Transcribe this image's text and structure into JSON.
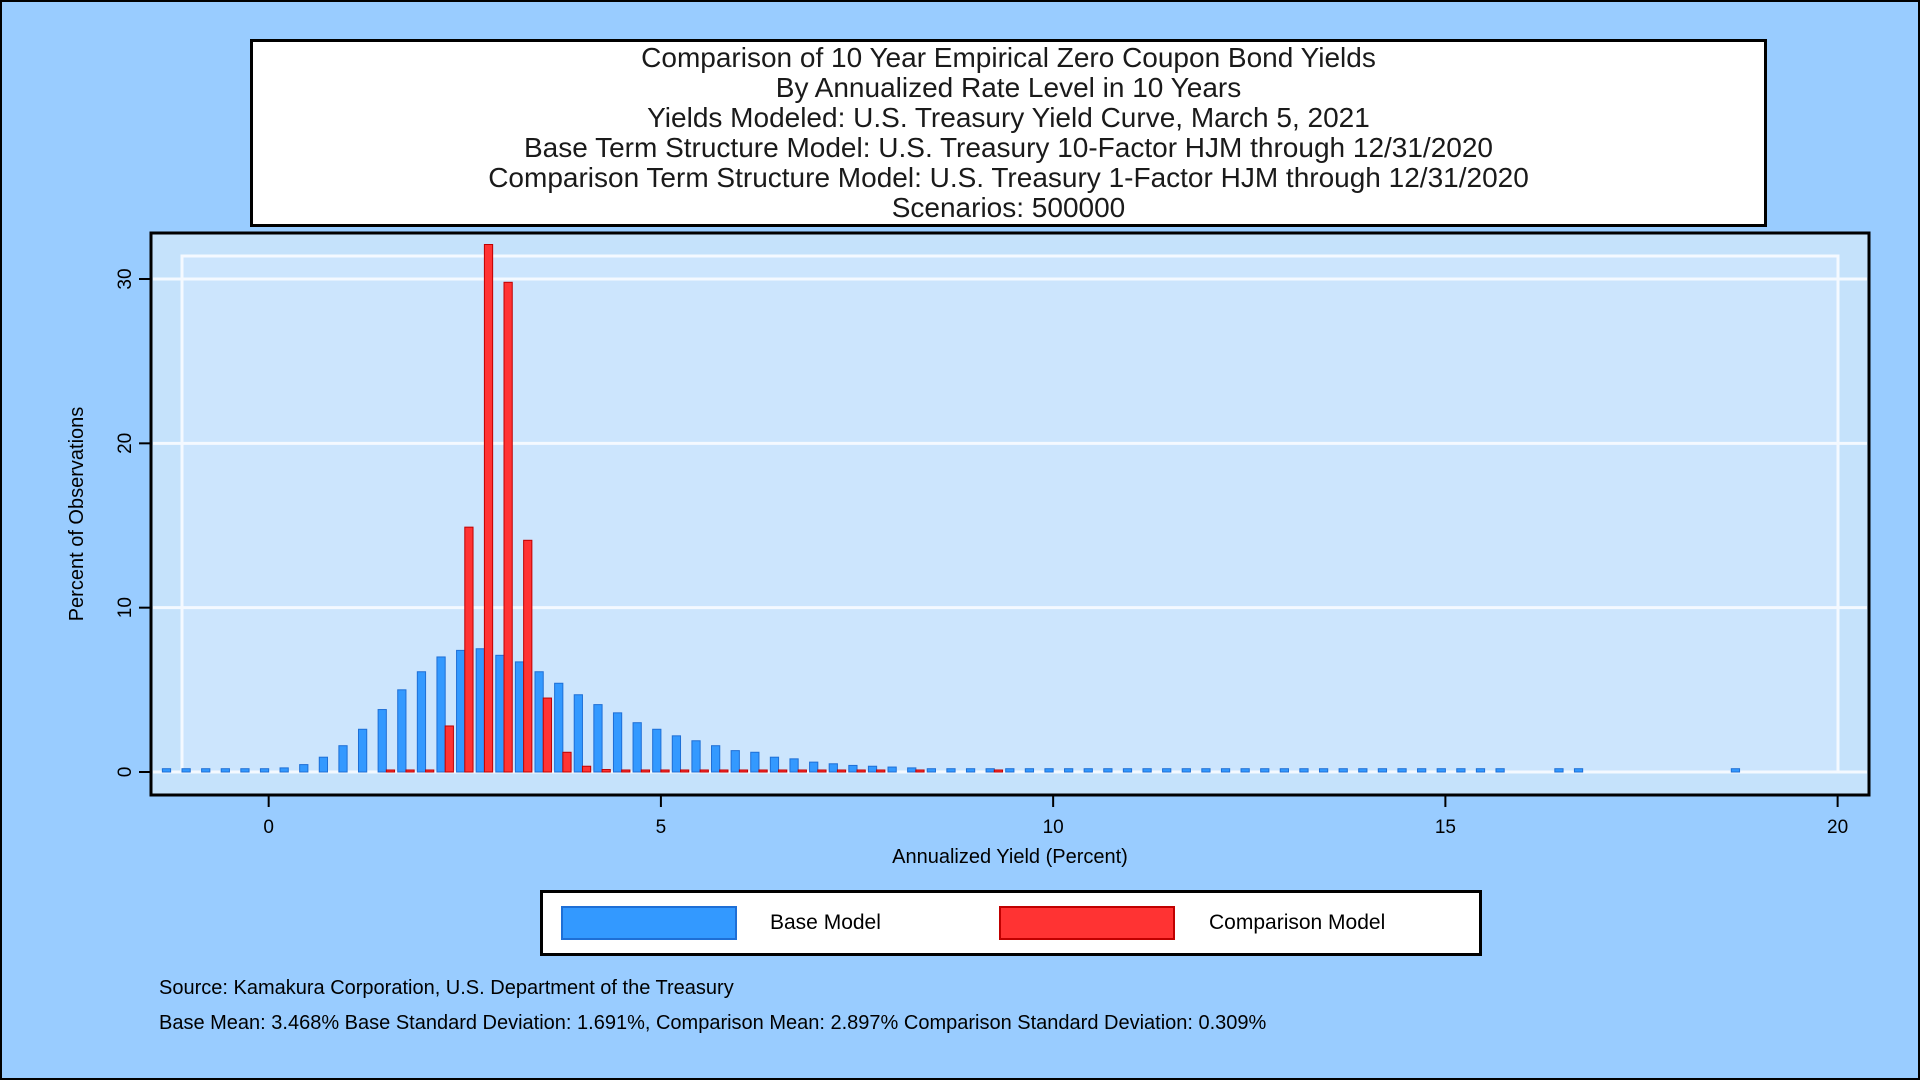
{
  "colors": {
    "background": "#99ccff",
    "plot_background": "#c5e2fb",
    "inner_plot": "#cce5fd",
    "grid": "#f4f9ff",
    "base_fill": "#3399ff",
    "base_edge": "#1e6fd6",
    "comparison_fill": "#ff3333",
    "comparison_edge": "#c00000"
  },
  "title_lines": [
    "Comparison of 10 Year Empirical Zero Coupon Bond Yields",
    "By Annualized Rate Level in 10 Years",
    "Yields Modeled: U.S. Treasury Yield Curve, March 5, 2021",
    "Base Term Structure Model: U.S. Treasury 10-Factor HJM through 12/31/2020",
    "Comparison Term Structure Model: U.S. Treasury 1-Factor HJM through 12/31/2020",
    "Scenarios: 500000"
  ],
  "legend": {
    "base_label": "Base Model",
    "comparison_label": "Comparison Model"
  },
  "footnotes": {
    "source": "Source: Kamakura Corporation, U.S. Department of the Treasury",
    "stats": "Base Mean:  3.468% Base Standard Deviation:  1.691%, Comparison Mean:  2.897% Comparison Standard Deviation:  0.309%"
  },
  "chart_data": {
    "type": "bar",
    "xlabel": "Annualized Yield (Percent)",
    "ylabel": "Percent of Observations",
    "xlim": [
      -1.5,
      20.4
    ],
    "ylim": [
      -1.4,
      32.8
    ],
    "xticks": [
      0,
      5,
      10,
      15,
      20
    ],
    "yticks": [
      0,
      10,
      20,
      30
    ],
    "grid": true,
    "legend_position": "bottom",
    "bin_width": 0.25,
    "series": [
      {
        "name": "Base Model",
        "color": "#3399ff",
        "x": [
          -1.25,
          -1.0,
          -0.75,
          -0.5,
          -0.25,
          0.0,
          0.25,
          0.5,
          0.75,
          1.0,
          1.25,
          1.5,
          1.75,
          2.0,
          2.25,
          2.5,
          2.75,
          3.0,
          3.25,
          3.5,
          3.75,
          4.0,
          4.25,
          4.5,
          4.75,
          5.0,
          5.25,
          5.5,
          5.75,
          6.0,
          6.25,
          6.5,
          6.75,
          7.0,
          7.25,
          7.5,
          7.75,
          8.0,
          8.25,
          8.5,
          8.75,
          9.0,
          9.25,
          9.5,
          9.75,
          10.0,
          10.25,
          10.5,
          10.75,
          11.0,
          11.25,
          11.5,
          11.75,
          12.0,
          12.25,
          12.5,
          12.75,
          13.0,
          13.25,
          13.5,
          13.75,
          14.0,
          14.25,
          14.5,
          14.75,
          15.0,
          15.25,
          15.5,
          15.75,
          16.5,
          16.75,
          18.75
        ],
        "values": [
          0.2,
          0.2,
          0.2,
          0.2,
          0.2,
          0.2,
          0.25,
          0.45,
          0.9,
          1.6,
          2.6,
          3.8,
          5.0,
          6.1,
          7.0,
          7.4,
          7.5,
          7.1,
          6.7,
          6.1,
          5.4,
          4.7,
          4.1,
          3.6,
          3.0,
          2.6,
          2.2,
          1.9,
          1.6,
          1.3,
          1.2,
          0.9,
          0.8,
          0.6,
          0.5,
          0.4,
          0.35,
          0.3,
          0.25,
          0.2,
          0.2,
          0.2,
          0.2,
          0.2,
          0.2,
          0.2,
          0.2,
          0.2,
          0.2,
          0.2,
          0.2,
          0.2,
          0.2,
          0.2,
          0.2,
          0.2,
          0.2,
          0.2,
          0.2,
          0.2,
          0.2,
          0.2,
          0.2,
          0.2,
          0.2,
          0.2,
          0.2,
          0.2,
          0.2,
          0.2,
          0.2,
          0.2
        ]
      },
      {
        "name": "Comparison Model",
        "color": "#ff3333",
        "x": [
          1.5,
          1.75,
          2.0,
          2.25,
          2.5,
          2.75,
          3.0,
          3.25,
          3.5,
          3.75,
          4.0,
          4.25,
          4.5,
          4.75,
          5.0,
          5.25,
          5.5,
          5.75,
          6.0,
          6.25,
          6.5,
          6.75,
          7.0,
          7.25,
          7.5,
          7.75,
          8.25,
          9.25
        ],
        "values": [
          0.1,
          0.1,
          0.1,
          2.8,
          14.9,
          32.1,
          29.8,
          14.1,
          4.5,
          1.2,
          0.35,
          0.15,
          0.1,
          0.1,
          0.1,
          0.1,
          0.1,
          0.1,
          0.1,
          0.1,
          0.1,
          0.1,
          0.1,
          0.1,
          0.1,
          0.1,
          0.1,
          0.1
        ]
      }
    ]
  }
}
